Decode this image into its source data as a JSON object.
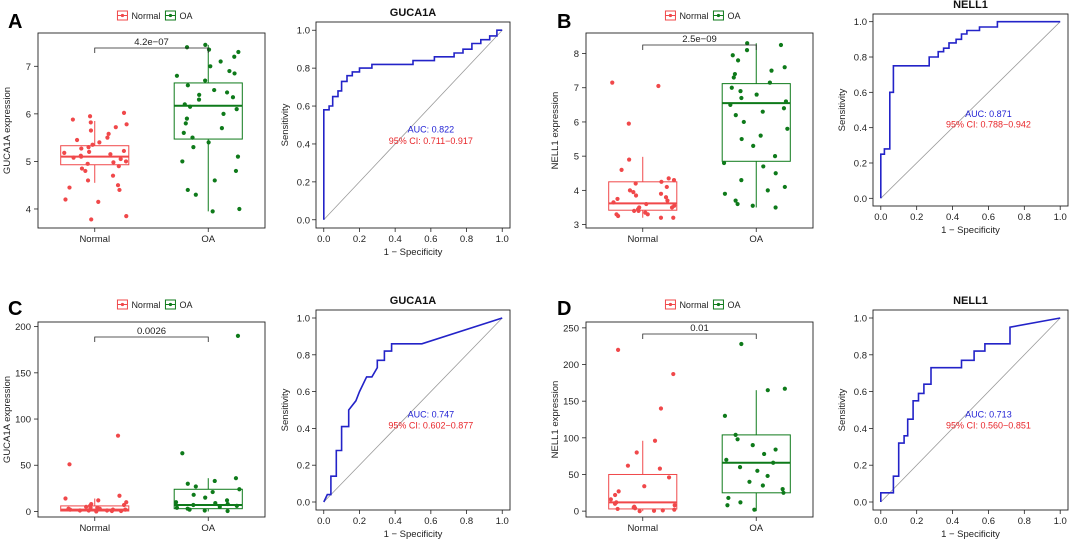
{
  "colors": {
    "normal": "#f0484a",
    "oa": "#0e7a1a",
    "roc": "#2323c8",
    "ci": "#e8262a",
    "diag": "#9a9a9a"
  },
  "chart_data": [
    {
      "panel": "A",
      "type": "box",
      "legend": [
        "Normal",
        "OA"
      ],
      "categories": [
        "Normal",
        "OA"
      ],
      "ylabel": "GUCA1A expression",
      "xlabel": "",
      "ylim": [
        3.6,
        7.7
      ],
      "yticks": [
        "4",
        "5",
        "6",
        "7"
      ],
      "pvalue": "4.2e−07",
      "boxes": [
        {
          "name": "Normal",
          "min": 4.55,
          "q1": 4.93,
          "median": 5.1,
          "q3": 5.33,
          "max": 5.85,
          "points": [
            5.88,
            5.82,
            5.78,
            5.72,
            5.65,
            5.58,
            5.5,
            5.45,
            5.4,
            5.35,
            5.3,
            5.27,
            5.22,
            5.2,
            5.18,
            5.15,
            5.12,
            5.1,
            5.08,
            5.05,
            5.0,
            4.98,
            4.95,
            4.9,
            4.85,
            4.8,
            4.7,
            4.6,
            4.5,
            4.45,
            4.4,
            4.2,
            4.15,
            3.85,
            3.78,
            6.02,
            5.95
          ]
        },
        {
          "name": "OA",
          "min": 3.95,
          "q1": 5.47,
          "median": 6.17,
          "q3": 6.65,
          "max": 7.45,
          "points": [
            7.45,
            7.4,
            7.35,
            7.3,
            7.2,
            7.1,
            7.0,
            6.9,
            6.85,
            6.8,
            6.7,
            6.6,
            6.5,
            6.45,
            6.4,
            6.35,
            6.3,
            6.2,
            6.15,
            6.1,
            6.0,
            5.9,
            5.8,
            5.7,
            5.6,
            5.5,
            5.4,
            5.3,
            5.1,
            5.0,
            4.8,
            4.6,
            4.4,
            4.3,
            4.0,
            3.95
          ]
        }
      ]
    },
    {
      "panel": "A-ROC",
      "type": "line",
      "title": "GUCA1A",
      "xlabel": "1 − Specificity",
      "ylabel": "Sensitivity",
      "xlim": [
        0,
        1
      ],
      "ylim": [
        0,
        1
      ],
      "ticks": [
        "0.0",
        "0.2",
        "0.4",
        "0.6",
        "0.8",
        "1.0"
      ],
      "auc": "AUC: 0.822",
      "ci": "95% CI: 0.711−0.917",
      "x": [
        0,
        0,
        0.03,
        0.03,
        0.05,
        0.05,
        0.08,
        0.08,
        0.1,
        0.1,
        0.13,
        0.13,
        0.16,
        0.16,
        0.2,
        0.2,
        0.27,
        0.27,
        0.5,
        0.5,
        0.62,
        0.62,
        0.73,
        0.73,
        0.78,
        0.78,
        0.83,
        0.83,
        0.88,
        0.88,
        0.93,
        0.93,
        0.97,
        0.97,
        1.0
      ],
      "y": [
        0,
        0.58,
        0.58,
        0.6,
        0.6,
        0.65,
        0.65,
        0.68,
        0.68,
        0.73,
        0.73,
        0.76,
        0.76,
        0.78,
        0.78,
        0.8,
        0.8,
        0.82,
        0.82,
        0.84,
        0.84,
        0.86,
        0.86,
        0.88,
        0.88,
        0.9,
        0.9,
        0.93,
        0.93,
        0.95,
        0.95,
        0.97,
        0.97,
        1.0,
        1.0
      ]
    },
    {
      "panel": "B",
      "type": "box",
      "legend": [
        "Normal",
        "OA"
      ],
      "categories": [
        "Normal",
        "OA"
      ],
      "ylabel": "NELL1 expression",
      "xlabel": "",
      "ylim": [
        2.9,
        8.6
      ],
      "yticks": [
        "3",
        "4",
        "5",
        "6",
        "7",
        "8"
      ],
      "pvalue": "2.5e−09",
      "boxes": [
        {
          "name": "Normal",
          "min": 3.2,
          "q1": 3.42,
          "median": 3.62,
          "q3": 4.25,
          "max": 4.98,
          "points": [
            7.15,
            7.05,
            5.95,
            4.9,
            4.6,
            4.35,
            4.3,
            4.25,
            4.2,
            4.1,
            4.0,
            3.95,
            3.9,
            3.85,
            3.8,
            3.75,
            3.7,
            3.65,
            3.6,
            3.55,
            3.5,
            3.5,
            3.45,
            3.4,
            3.4,
            3.35,
            3.3,
            3.3,
            3.25,
            3.2,
            3.2
          ]
        },
        {
          "name": "OA",
          "min": 3.5,
          "q1": 4.85,
          "median": 6.55,
          "q3": 7.12,
          "max": 8.3,
          "points": [
            8.3,
            8.25,
            8.1,
            7.95,
            7.8,
            7.6,
            7.5,
            7.4,
            7.3,
            7.15,
            7.0,
            6.9,
            6.8,
            6.7,
            6.6,
            6.5,
            6.4,
            6.3,
            6.2,
            6.0,
            5.8,
            5.6,
            5.5,
            5.3,
            5.0,
            4.8,
            4.7,
            4.5,
            4.3,
            4.1,
            4.0,
            3.9,
            3.7,
            3.6,
            3.55,
            3.5
          ]
        }
      ]
    },
    {
      "panel": "B-ROC",
      "type": "line",
      "title": "NELL1",
      "xlabel": "1 − Specificity",
      "ylabel": "Sensitivity",
      "xlim": [
        0,
        1
      ],
      "ylim": [
        0,
        1
      ],
      "ticks": [
        "0.0",
        "0.2",
        "0.4",
        "0.6",
        "0.8",
        "1.0"
      ],
      "auc": "AUC: 0.871",
      "ci": "95% CI: 0.788−0.942",
      "x": [
        0,
        0,
        0.02,
        0.02,
        0.05,
        0.05,
        0.07,
        0.07,
        0.1,
        0.1,
        0.27,
        0.27,
        0.32,
        0.32,
        0.35,
        0.35,
        0.38,
        0.38,
        0.42,
        0.42,
        0.45,
        0.45,
        0.48,
        0.48,
        0.55,
        0.55,
        0.62,
        0.62,
        0.65,
        0.65,
        0.72,
        0.72,
        1.0
      ],
      "y": [
        0,
        0.25,
        0.25,
        0.28,
        0.28,
        0.6,
        0.6,
        0.75,
        0.75,
        0.75,
        0.75,
        0.8,
        0.8,
        0.83,
        0.83,
        0.85,
        0.85,
        0.88,
        0.88,
        0.9,
        0.9,
        0.93,
        0.93,
        0.95,
        0.95,
        0.97,
        0.97,
        0.97,
        0.97,
        1.0,
        1.0,
        1.0,
        1.0
      ]
    },
    {
      "panel": "C",
      "type": "box",
      "legend": [
        "Normal",
        "OA"
      ],
      "categories": [
        "Normal",
        "OA"
      ],
      "ylabel": "GUCA1A expression",
      "xlabel": "",
      "ylim": [
        -6,
        205
      ],
      "yticks": [
        "0",
        "50",
        "100",
        "150",
        "200"
      ],
      "pvalue": "0.0026",
      "boxes": [
        {
          "name": "Normal",
          "min": 0,
          "q1": 0.5,
          "median": 2,
          "q3": 6,
          "max": 14,
          "points": [
            82,
            51,
            17,
            14,
            12,
            10,
            8,
            7,
            6,
            5,
            4,
            4,
            3,
            3,
            2,
            2,
            2,
            1,
            1,
            1,
            0.5,
            0.5,
            0
          ]
        },
        {
          "name": "OA",
          "min": 0,
          "q1": 3,
          "median": 7,
          "q3": 24,
          "max": 36,
          "points": [
            190,
            63,
            36,
            33,
            30,
            27,
            24,
            21,
            18,
            15,
            12,
            10,
            9,
            8,
            7,
            6,
            5,
            4,
            3,
            2,
            1,
            0.5
          ]
        }
      ]
    },
    {
      "panel": "C-ROC",
      "type": "line",
      "title": "GUCA1A",
      "xlabel": "1 − Specificity",
      "ylabel": "Sensitivity",
      "xlim": [
        0,
        1
      ],
      "ylim": [
        0,
        1
      ],
      "ticks": [
        "0.0",
        "0.2",
        "0.4",
        "0.6",
        "0.8",
        "1.0"
      ],
      "auc": "AUC: 0.747",
      "ci": "95% CI: 0.602−0.877",
      "x": [
        0,
        0.02,
        0.04,
        0.04,
        0.07,
        0.07,
        0.1,
        0.1,
        0.14,
        0.14,
        0.18,
        0.2,
        0.24,
        0.27,
        0.3,
        0.3,
        0.34,
        0.34,
        0.38,
        0.38,
        0.55,
        1.0
      ],
      "y": [
        0,
        0.04,
        0.04,
        0.14,
        0.14,
        0.28,
        0.28,
        0.41,
        0.41,
        0.5,
        0.55,
        0.6,
        0.68,
        0.68,
        0.73,
        0.77,
        0.77,
        0.82,
        0.82,
        0.86,
        0.86,
        1.0
      ]
    },
    {
      "panel": "D",
      "type": "box",
      "legend": [
        "Normal",
        "OA"
      ],
      "categories": [
        "Normal",
        "OA"
      ],
      "ylabel": "NELL1 expression",
      "xlabel": "",
      "ylim": [
        -8,
        258
      ],
      "yticks": [
        "0",
        "50",
        "100",
        "150",
        "200",
        "250"
      ],
      "pvalue": "0.01",
      "boxes": [
        {
          "name": "Normal",
          "min": 0,
          "q1": 3,
          "median": 12,
          "q3": 50,
          "max": 96,
          "points": [
            220,
            187,
            140,
            96,
            80,
            62,
            58,
            46,
            34,
            27,
            22,
            16,
            12,
            10,
            8,
            6,
            5,
            4,
            3,
            2,
            1,
            0.5,
            0
          ]
        },
        {
          "name": "OA",
          "min": 0,
          "q1": 25,
          "median": 66,
          "q3": 104,
          "max": 165,
          "points": [
            228,
            167,
            165,
            130,
            104,
            98,
            90,
            84,
            78,
            70,
            66,
            60,
            55,
            48,
            40,
            35,
            30,
            25,
            18,
            12,
            8,
            2
          ]
        }
      ]
    },
    {
      "panel": "D-ROC",
      "type": "line",
      "title": "NELL1",
      "xlabel": "1 − Specificity",
      "ylabel": "Sensitivity",
      "xlim": [
        0,
        1
      ],
      "ylim": [
        0,
        1
      ],
      "ticks": [
        "0.0",
        "0.2",
        "0.4",
        "0.6",
        "0.8",
        "1.0"
      ],
      "auc": "AUC: 0.713",
      "ci": "95% CI: 0.560−0.851",
      "x": [
        0,
        0,
        0.07,
        0.07,
        0.1,
        0.1,
        0.13,
        0.13,
        0.15,
        0.15,
        0.18,
        0.18,
        0.21,
        0.21,
        0.24,
        0.24,
        0.28,
        0.28,
        0.34,
        0.34,
        0.45,
        0.45,
        0.52,
        0.52,
        0.58,
        0.58,
        0.72,
        0.72,
        1.0
      ],
      "y": [
        0,
        0.05,
        0.05,
        0.14,
        0.14,
        0.32,
        0.32,
        0.36,
        0.36,
        0.45,
        0.45,
        0.55,
        0.55,
        0.59,
        0.59,
        0.64,
        0.64,
        0.73,
        0.73,
        0.73,
        0.73,
        0.77,
        0.77,
        0.82,
        0.82,
        0.86,
        0.86,
        0.95,
        1.0
      ]
    }
  ]
}
